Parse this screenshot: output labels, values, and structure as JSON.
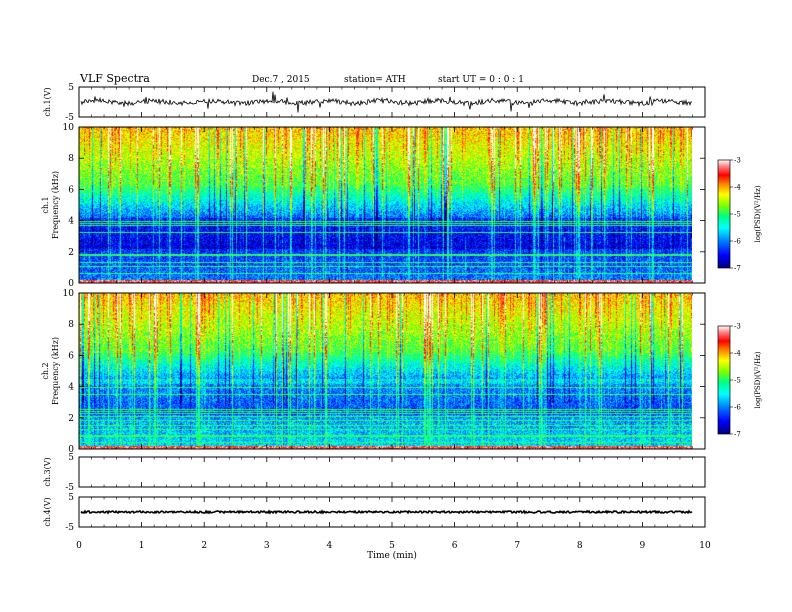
{
  "header": {
    "title": "VLF  Spectra",
    "date": "Dec.7  , 2015",
    "station": "station= ATH",
    "start": "start  UT  =   0 : 0  : 1"
  },
  "chart_data": [
    {
      "type": "line",
      "panel": "ch1-waveform",
      "ylabel": "ch.1(V)",
      "ylim": [
        -5,
        5
      ],
      "yticks": [
        "5",
        "-5"
      ],
      "baseline": 0
    },
    {
      "type": "heatmap",
      "panel": "ch1-spectrogram",
      "ylabel": "ch.1",
      "ylabel2": "Frequency  (kHz)",
      "ylim": [
        0,
        10
      ],
      "yticks": [
        "0",
        "2",
        "4",
        "6",
        "8",
        "10"
      ],
      "colorbar": {
        "label": "log(PSD)(V²/Hz)",
        "range": [
          -7,
          -3
        ],
        "ticks": [
          "-3",
          "-4",
          "-5",
          "-6",
          "-7"
        ],
        "colors": [
          "#000080",
          "#0000ff",
          "#0080ff",
          "#00ffff",
          "#00ff80",
          "#80ff00",
          "#ffff00",
          "#ff8000",
          "#ff0000",
          "#ff8080",
          "#ffffff"
        ]
      }
    },
    {
      "type": "heatmap",
      "panel": "ch2-spectrogram",
      "ylabel": "ch.2",
      "ylabel2": "Frequency  (kHz)",
      "ylim": [
        0,
        10
      ],
      "yticks": [
        "0",
        "2",
        "4",
        "6",
        "8",
        "10"
      ],
      "colorbar": {
        "label": "log(PSD)(V²/Hz)",
        "range": [
          -7,
          -3
        ],
        "ticks": [
          "-3",
          "-4",
          "-5",
          "-6",
          "-7"
        ]
      }
    },
    {
      "type": "line",
      "panel": "ch3-waveform",
      "ylabel": "ch.3(V)",
      "ylim": [
        -5,
        5
      ],
      "yticks": [
        "5",
        "-5"
      ],
      "baseline": null
    },
    {
      "type": "line",
      "panel": "ch4-waveform",
      "ylabel": "ch.4(V)",
      "ylim": [
        -5,
        5
      ],
      "yticks": [
        "5",
        "-5"
      ],
      "baseline": 0
    }
  ],
  "xaxis": {
    "xlabel": "Time  (min)",
    "xlim": [
      0,
      10
    ],
    "ticks": [
      "0",
      "1",
      "2",
      "3",
      "4",
      "5",
      "6",
      "7",
      "8",
      "9",
      "10"
    ],
    "data_end": 9.8
  }
}
